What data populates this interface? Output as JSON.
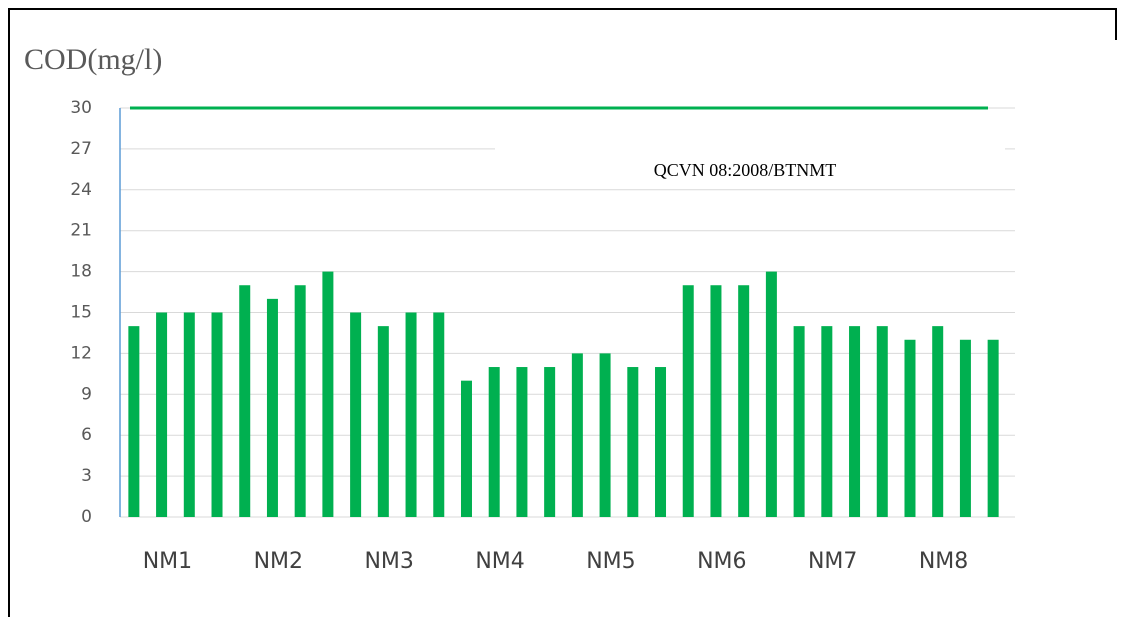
{
  "chart_data": {
    "type": "grouped_bar",
    "y_label": "COD(mg/l)",
    "categories": [
      "NM1",
      "NM2",
      "NM3",
      "NM4",
      "NM5",
      "NM6",
      "NM7",
      "NM8"
    ],
    "series": [
      {
        "color": "#00b050",
        "values": [
          14,
          17,
          15,
          10,
          12,
          17,
          14,
          13
        ]
      },
      {
        "color": "#00b050",
        "values": [
          15,
          16,
          14,
          11,
          12,
          17,
          14,
          14
        ]
      },
      {
        "color": "#00b050",
        "values": [
          15,
          17,
          15,
          11,
          11,
          17,
          14,
          13
        ]
      },
      {
        "color": "#00b050",
        "values": [
          15,
          18,
          15,
          11,
          11,
          18,
          14,
          13
        ]
      }
    ],
    "reference_line": {
      "value": 30,
      "label": "QCVN 08:2008/BTNMT",
      "color": "#00b050"
    },
    "ylim": [
      0,
      30
    ],
    "yticks": [
      0,
      3,
      6,
      9,
      12,
      15,
      18,
      21,
      24,
      27,
      30
    ],
    "grid": true
  }
}
